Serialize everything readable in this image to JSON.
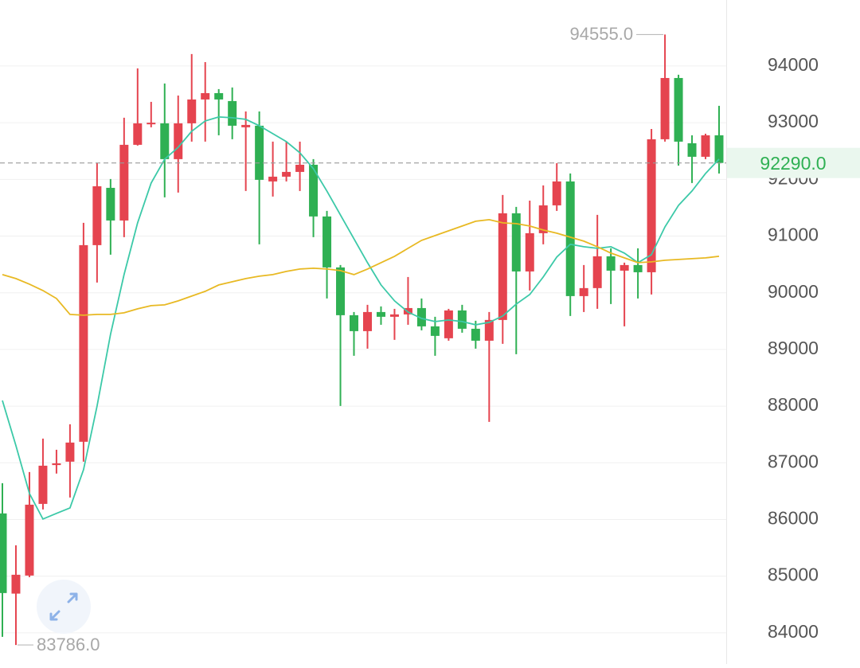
{
  "chart_data": {
    "type": "candlestick",
    "colors": {
      "up": "#e5444f",
      "down": "#2fb053"
    },
    "open": [
      86107,
      84692,
      85011,
      86275,
      86960,
      87020,
      87371,
      90840,
      91851,
      91275,
      92610,
      92989,
      92989,
      92357,
      92989,
      93410,
      93522,
      93382,
      92919,
      92947,
      91964,
      92048,
      92132,
      92258,
      91346,
      90447,
      89604,
      89323,
      89660,
      89576,
      89618,
      89730,
      89407,
      89197,
      89688,
      89365,
      89154,
      89520,
      91402,
      90376,
      91051,
      91542,
      91964,
      89941,
      90082,
      90643,
      90390,
      90489,
      90362,
      92708,
      93789,
      92638,
      92399,
      92778
    ],
    "high": [
      86640,
      85545,
      86837,
      87427,
      87230,
      87680,
      91233,
      92286,
      92006,
      93087,
      93958,
      93368,
      93691,
      93480,
      94211,
      94070,
      93593,
      93621,
      93199,
      93199,
      92666,
      92666,
      92666,
      92357,
      91444,
      90489,
      89660,
      89787,
      89759,
      89716,
      90278,
      89899,
      89576,
      89716,
      89787,
      89506,
      89660,
      91725,
      91514,
      91626,
      91893,
      92286,
      92104,
      90489,
      91374,
      90784,
      90531,
      90784,
      92890,
      94555,
      93846,
      92778,
      92806,
      93298
    ],
    "low": [
      83930,
      83786,
      84983,
      86177,
      86810,
      86388,
      87020,
      90180,
      90671,
      90980,
      92596,
      92919,
      91683,
      91767,
      92666,
      92666,
      92778,
      92708,
      91795,
      90854,
      91697,
      91964,
      91795,
      90980,
      89899,
      88003,
      88888,
      89014,
      89435,
      89169,
      89435,
      89337,
      88888,
      89154,
      89295,
      89014,
      87722,
      89098,
      88916,
      90039,
      90854,
      91444,
      89590,
      89660,
      89716,
      89801,
      89407,
      89899,
      89969,
      92666,
      92244,
      91936,
      92357,
      92104
    ],
    "close": [
      84702,
      85025,
      86261,
      86949,
      86990,
      87357,
      90840,
      91879,
      91275,
      92610,
      92989,
      93000,
      92357,
      92989,
      93410,
      93522,
      93410,
      92947,
      92961,
      91992,
      92048,
      92132,
      92258,
      91346,
      90447,
      89604,
      89323,
      89660,
      89576,
      89618,
      89730,
      89407,
      89239,
      89688,
      89365,
      89154,
      89520,
      91402,
      90376,
      91051,
      91542,
      91964,
      89941,
      90082,
      90643,
      90390,
      90489,
      90362,
      92708,
      93789,
      92666,
      92399,
      92778,
      92290
    ],
    "series": [
      {
        "color": "#3cc9a8",
        "values": [
          88100,
          87301,
          86458,
          86008,
          86107,
          86205,
          86879,
          88003,
          89267,
          90320,
          91233,
          91936,
          92357,
          92567,
          92848,
          93031,
          93101,
          93087,
          93059,
          92947,
          92806,
          92666,
          92469,
          92188,
          91795,
          91374,
          90952,
          90531,
          90138,
          89857,
          89660,
          89548,
          89492,
          89520,
          89492,
          89435,
          89478,
          89590,
          89801,
          89969,
          90278,
          90629,
          90854,
          90812,
          90784,
          90812,
          90699,
          90531,
          90671,
          91163,
          91542,
          91795,
          92104,
          92357
        ]
      },
      {
        "color": "#e8b923",
        "values": [
          90320,
          90250,
          90152,
          90039,
          89899,
          89618,
          89604,
          89618,
          89618,
          89646,
          89716,
          89773,
          89787,
          89857,
          89941,
          90025,
          90138,
          90194,
          90250,
          90292,
          90320,
          90376,
          90418,
          90433,
          90418,
          90390,
          90320,
          90418,
          90531,
          90643,
          90784,
          90924,
          91008,
          91093,
          91177,
          91261,
          91289,
          91233,
          91219,
          91177,
          91107,
          91051,
          90980,
          90910,
          90812,
          90699,
          90615,
          90531,
          90545,
          90573,
          90587,
          90601,
          90615,
          90643
        ]
      }
    ],
    "ylim": [
      83450,
      95165
    ],
    "yticks": [
      84000,
      85000,
      86000,
      87000,
      88000,
      89000,
      90000,
      91000,
      92000,
      93000,
      94000
    ],
    "grid": true,
    "max_marker": {
      "value": 94555,
      "label": "94555.0"
    },
    "min_marker": {
      "value": 83786,
      "label": "83786.0"
    },
    "last_price": {
      "value": 92290,
      "label": "92290.0",
      "color": "#2fb053"
    }
  }
}
